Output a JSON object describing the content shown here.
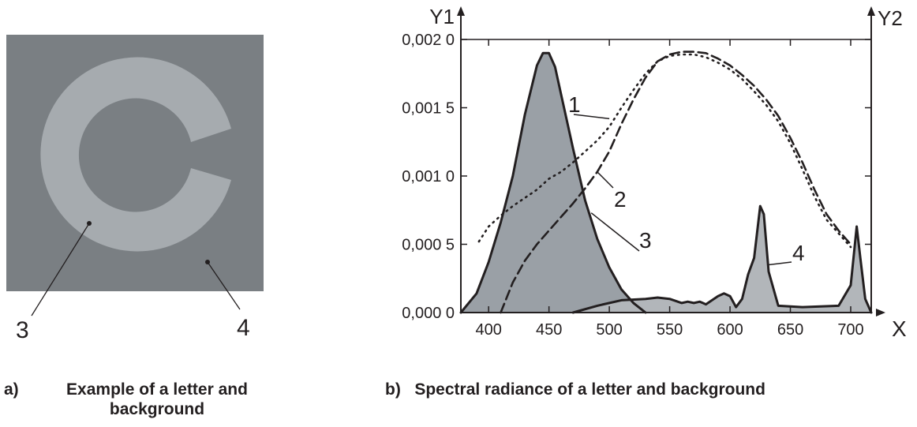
{
  "panel_a": {
    "caption_letter": "a)",
    "caption_text": "Example of a letter and background",
    "letter_label": "3",
    "background_label": "4",
    "colors": {
      "background": "#7a7f83",
      "letter": "#a6abaf"
    }
  },
  "panel_b": {
    "caption_letter": "b)",
    "caption_text": "Spectral radiance of a letter and background"
  },
  "chart_data": {
    "type": "line",
    "title": "",
    "xlabel": "X",
    "ylabel": "Y1",
    "y2label": "Y2",
    "xlim": [
      377,
      717
    ],
    "ylim": [
      0,
      0.002
    ],
    "x_ticks": [
      400,
      450,
      500,
      550,
      600,
      650,
      700
    ],
    "x_tick_labels": [
      "400",
      "450",
      "500",
      "550",
      "600",
      "650",
      "700"
    ],
    "y_ticks": [
      0,
      0.0005,
      0.001,
      0.0015,
      0.002
    ],
    "y_tick_labels": [
      "0,000 0",
      "0,000 5",
      "0,001 0",
      "0,001 5",
      "0,002 0"
    ],
    "grid": false,
    "series": [
      {
        "name": "1",
        "style": "dotted",
        "fill": null,
        "x": [
          392,
          400,
          410,
          420,
          430,
          440,
          450,
          460,
          470,
          480,
          490,
          500,
          510,
          520,
          530,
          540,
          550,
          560,
          570,
          580,
          590,
          600,
          610,
          620,
          630,
          640,
          650,
          660,
          670,
          680,
          690,
          700
        ],
        "y": [
          0.00052,
          0.00063,
          0.00071,
          0.00078,
          0.00084,
          0.0009,
          0.00098,
          0.00103,
          0.0011,
          0.00118,
          0.00126,
          0.00136,
          0.0015,
          0.00163,
          0.00175,
          0.00184,
          0.00188,
          0.00189,
          0.00189,
          0.00187,
          0.00183,
          0.00178,
          0.00171,
          0.00162,
          0.00152,
          0.0014,
          0.00124,
          0.00105,
          0.00085,
          0.00068,
          0.00058,
          0.00048
        ]
      },
      {
        "name": "2",
        "style": "dashed",
        "fill": null,
        "x": [
          410,
          420,
          430,
          440,
          450,
          460,
          470,
          480,
          490,
          500,
          510,
          520,
          530,
          540,
          550,
          560,
          570,
          580,
          590,
          600,
          610,
          620,
          630,
          640,
          650,
          660,
          670,
          680,
          690,
          700
        ],
        "y": [
          0.0,
          0.00022,
          0.00038,
          0.0005,
          0.0006,
          0.0007,
          0.0008,
          0.00091,
          0.00103,
          0.00118,
          0.00138,
          0.00156,
          0.00172,
          0.00184,
          0.00189,
          0.00191,
          0.00191,
          0.0019,
          0.00186,
          0.00181,
          0.00174,
          0.00166,
          0.00156,
          0.00144,
          0.00128,
          0.0011,
          0.0009,
          0.00072,
          0.0006,
          0.0005
        ]
      },
      {
        "name": "3",
        "style": "solid",
        "fill": "#9aa0a6",
        "x": [
          377,
          390,
          400,
          410,
          420,
          430,
          440,
          445,
          450,
          455,
          460,
          470,
          480,
          490,
          500,
          510,
          520,
          530
        ],
        "y": [
          0.0,
          0.00014,
          0.00037,
          0.00066,
          0.001,
          0.00145,
          0.00181,
          0.0019,
          0.0019,
          0.0018,
          0.0016,
          0.0012,
          0.00082,
          0.00054,
          0.00033,
          0.00017,
          7e-05,
          0.0
        ]
      },
      {
        "name": "4",
        "style": "solid",
        "fill": "#b2b6ba",
        "x": [
          470,
          490,
          510,
          530,
          540,
          550,
          560,
          565,
          570,
          575,
          580,
          590,
          595,
          600,
          605,
          610,
          615,
          620,
          625,
          628,
          632,
          640,
          660,
          690,
          700,
          705,
          708,
          712,
          717
        ],
        "y": [
          0.0,
          5e-05,
          9e-05,
          0.0001,
          0.00011,
          0.0001,
          7e-05,
          8e-05,
          7e-05,
          8e-05,
          6e-05,
          0.00012,
          0.00014,
          0.00012,
          4e-05,
          0.0001,
          0.00028,
          0.0004,
          0.00078,
          0.00072,
          0.0003,
          5e-05,
          4e-05,
          5e-05,
          0.0002,
          0.00063,
          0.0004,
          0.0001,
          0.0
        ]
      }
    ]
  }
}
